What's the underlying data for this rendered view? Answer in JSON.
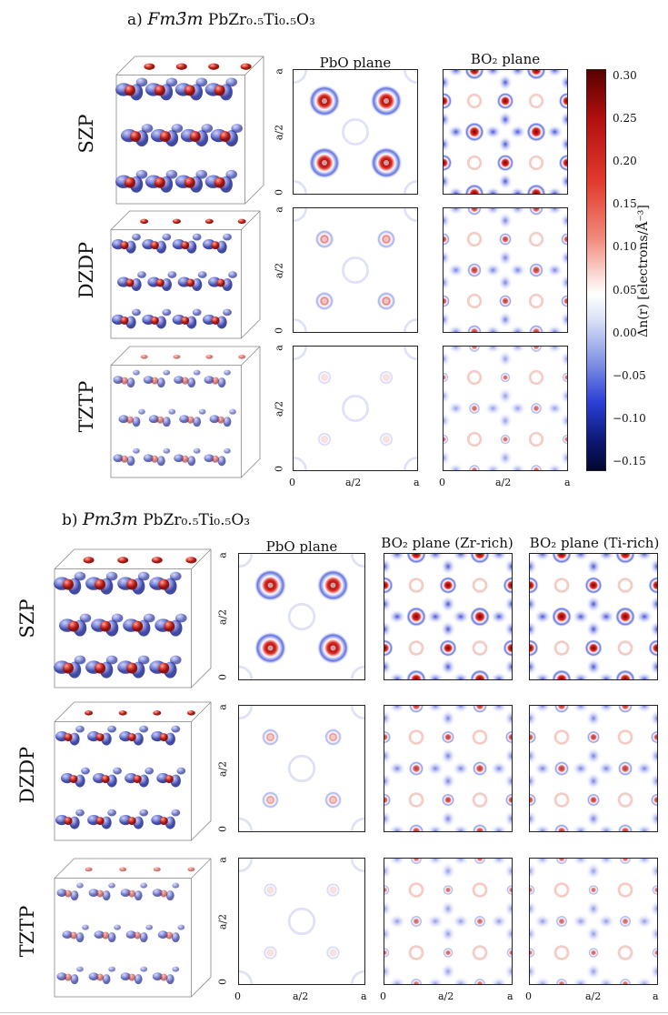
{
  "section_a": {
    "label": "a)",
    "space_group": "Fm3̄m",
    "formula": "PbZr₀.₅Ti₀.₅O₃",
    "columns": [
      "PbO plane",
      "BO₂ plane"
    ],
    "rows": [
      "SZP",
      "DZDP",
      "TZTP"
    ]
  },
  "section_b": {
    "label": "b)",
    "space_group": "Pm3̄m",
    "formula": "PbZr₀.₅Ti₀.₅O₃",
    "columns": [
      "PbO plane",
      "BO₂ plane (Zr-rich)",
      "BO₂ plane (Ti-rich)"
    ],
    "rows": [
      "SZP",
      "DZDP",
      "TZTP"
    ]
  },
  "axis_ticks": {
    "zero": "0",
    "half": "a/2",
    "full": "a"
  },
  "colorbar": {
    "label": "Δn(r) [electrons/Å⁻³]",
    "ticks": [
      "0.30",
      "0.25",
      "0.20",
      "0.15",
      "0.10",
      "0.05",
      "0.00",
      "−0.05",
      "−0.10",
      "−0.15"
    ],
    "colors": {
      "max": "#5a0000",
      "pos": "#e23b2f",
      "zero": "#ffffff",
      "neg": "#2b3fd6",
      "min": "#03072e"
    }
  }
}
